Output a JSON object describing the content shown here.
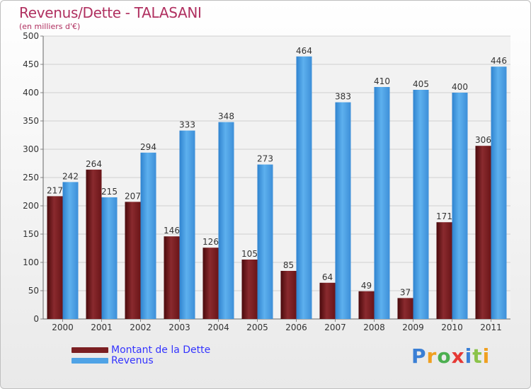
{
  "header": {
    "title": "Revenus/Dette - TALASANI",
    "subtitle": "(en milliers d'€)"
  },
  "legend": {
    "items": [
      {
        "label": "Montant de la Dette",
        "color": "#7b1f22"
      },
      {
        "label": "Revenus",
        "color": "#4fa3e6"
      }
    ]
  },
  "logo": {
    "text": "Proxiti"
  },
  "chart_data": {
    "type": "bar",
    "categories": [
      "2000",
      "2001",
      "2002",
      "2003",
      "2004",
      "2005",
      "2006",
      "2007",
      "2008",
      "2009",
      "2010",
      "2011"
    ],
    "series": [
      {
        "name": "Montant de la Dette",
        "color": "#7b1f22",
        "values": [
          217,
          264,
          207,
          146,
          126,
          105,
          85,
          64,
          49,
          37,
          171,
          306
        ]
      },
      {
        "name": "Revenus",
        "color": "#4fa3e6",
        "values": [
          242,
          215,
          294,
          333,
          348,
          273,
          464,
          383,
          410,
          405,
          400,
          446
        ]
      }
    ],
    "ylim": [
      0,
      500
    ],
    "yticks": [
      0,
      50,
      100,
      150,
      200,
      250,
      300,
      350,
      400,
      450,
      500
    ],
    "grid": true,
    "legend_position": "bottom-left"
  }
}
